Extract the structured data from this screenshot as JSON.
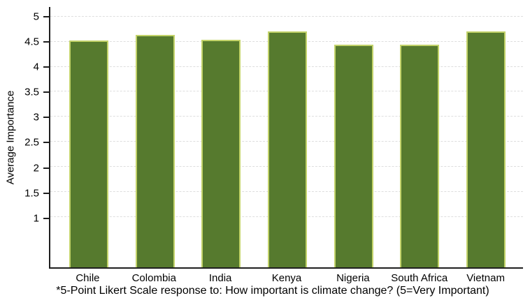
{
  "chart_data": {
    "type": "bar",
    "title": "",
    "xlabel": "",
    "ylabel": "Average Importance",
    "categories": [
      "Chile",
      "Colombia",
      "India",
      "Kenya",
      "Nigeria",
      "South Africa",
      "Vietnam"
    ],
    "values": [
      4.52,
      4.64,
      4.54,
      4.7,
      4.44,
      4.44,
      4.71
    ],
    "yticks": [
      "1",
      "1.5",
      "2",
      "2.5",
      "3",
      "3.5",
      "4",
      "4.5",
      "5"
    ],
    "ylim": [
      0,
      5.19
    ],
    "grid": "horizontal-dashed",
    "legend": "none",
    "caption": "*5-Point Likert Scale response to: How important is climate change? (5=Very Important)",
    "colors": {
      "bar_fill": "#567a2e",
      "bar_border": "#c3d36a",
      "axis": "#1f1f1f",
      "gridline": "#dedede",
      "text": "#000000",
      "background": "#ffffff"
    }
  }
}
